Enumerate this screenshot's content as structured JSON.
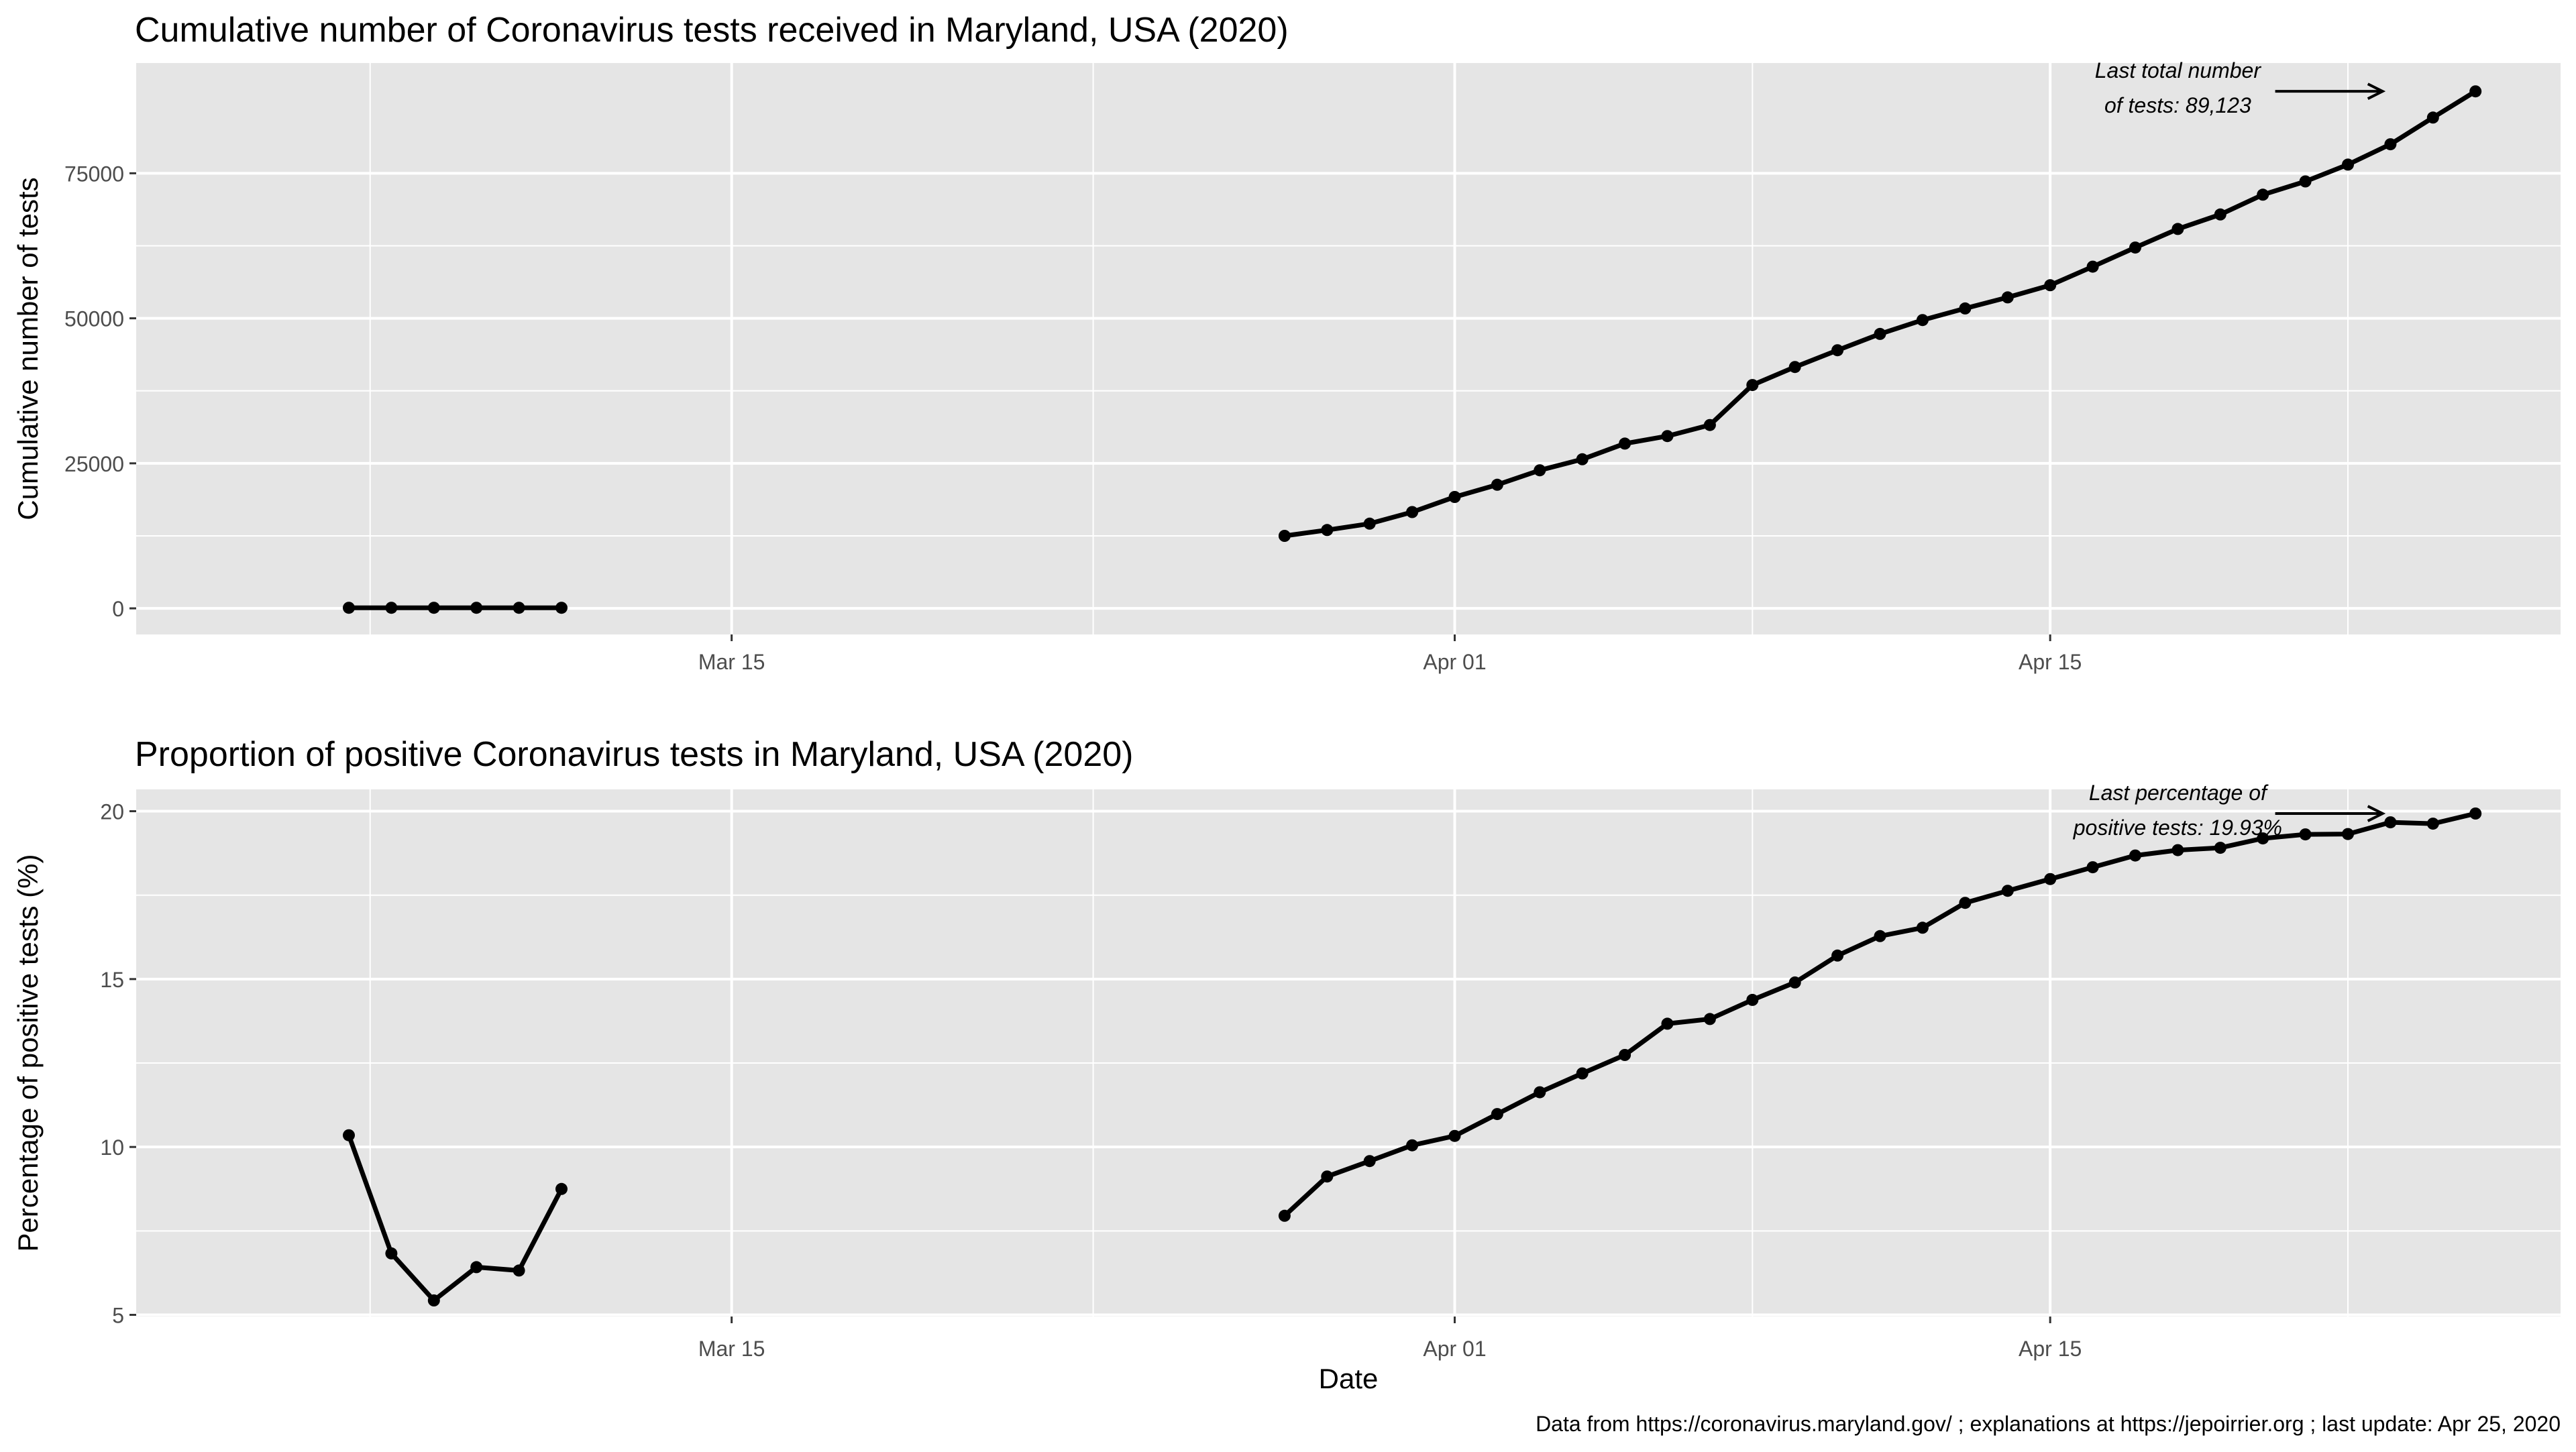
{
  "chart_data": [
    {
      "type": "line",
      "title": "Cumulative number of Coronavirus tests received in Maryland, USA (2020)",
      "xlabel": "",
      "ylabel": "Cumulative number of tests",
      "x_ticks": [
        "Mar 15",
        "Apr 01",
        "Apr 15"
      ],
      "y_ticks": [
        0,
        25000,
        50000,
        75000
      ],
      "xlim": [
        "2020-03-01",
        "2020-04-27"
      ],
      "ylim": [
        -4500,
        94000
      ],
      "grid": true,
      "annotation": {
        "lines": [
          "Last total number",
          "of tests: 89,123"
        ],
        "arrow_from_date": "2020-04-21",
        "arrow_to_date": "2020-04-22.5",
        "value": 89123
      },
      "series": [
        {
          "segments": [
            {
              "x": [
                "2020-03-06",
                "2020-03-07",
                "2020-03-08",
                "2020-03-09",
                "2020-03-10",
                "2020-03-11"
              ],
              "y": [
                100,
                100,
                100,
                100,
                100,
                100
              ]
            },
            {
              "x": [
                "2020-03-28",
                "2020-03-29",
                "2020-03-30",
                "2020-03-31",
                "2020-04-01",
                "2020-04-02",
                "2020-04-03",
                "2020-04-04",
                "2020-04-05",
                "2020-04-06",
                "2020-04-07",
                "2020-04-08",
                "2020-04-09",
                "2020-04-10",
                "2020-04-11",
                "2020-04-12",
                "2020-04-13",
                "2020-04-14",
                "2020-04-15",
                "2020-04-16",
                "2020-04-17",
                "2020-04-18",
                "2020-04-19",
                "2020-04-20",
                "2020-04-21",
                "2020-04-22",
                "2020-04-23",
                "2020-04-24",
                "2020-04-25"
              ],
              "y": [
                12500,
                13500,
                14600,
                16600,
                19200,
                21300,
                23800,
                25700,
                28400,
                29700,
                31600,
                38500,
                41600,
                44500,
                47300,
                49700,
                51700,
                53600,
                55700,
                58900,
                62200,
                65400,
                67900,
                71300,
                73600,
                76500,
                80000,
                84600,
                89123
              ]
            }
          ]
        }
      ]
    },
    {
      "type": "line",
      "title": "Proportion of positive Coronavirus tests in Maryland, USA (2020)",
      "xlabel": "Date",
      "ylabel": "Percentage of positive tests (%)",
      "x_ticks": [
        "Mar 15",
        "Apr 01",
        "Apr 15"
      ],
      "y_ticks": [
        5,
        10,
        15,
        20
      ],
      "xlim": [
        "2020-03-01",
        "2020-04-27"
      ],
      "ylim": [
        4.95,
        20.65
      ],
      "grid": true,
      "annotation": {
        "lines": [
          "Last percentage of",
          "positive tests: 19.93%"
        ],
        "arrow_from_date": "2020-04-21",
        "arrow_to_date": "2020-04-22.5",
        "value": 19.93
      },
      "series": [
        {
          "segments": [
            {
              "x": [
                "2020-03-06",
                "2020-03-07",
                "2020-03-08",
                "2020-03-09",
                "2020-03-10",
                "2020-03-11"
              ],
              "y": [
                10.35,
                6.83,
                5.43,
                6.42,
                6.32,
                8.75
              ]
            },
            {
              "x": [
                "2020-03-28",
                "2020-03-29",
                "2020-03-30",
                "2020-03-31",
                "2020-04-01",
                "2020-04-02",
                "2020-04-03",
                "2020-04-04",
                "2020-04-05",
                "2020-04-06",
                "2020-04-07",
                "2020-04-08",
                "2020-04-09",
                "2020-04-10",
                "2020-04-11",
                "2020-04-12",
                "2020-04-13",
                "2020-04-14",
                "2020-04-15",
                "2020-04-16",
                "2020-04-17",
                "2020-04-18",
                "2020-04-19",
                "2020-04-20",
                "2020-04-21",
                "2020-04-22",
                "2020-04-23",
                "2020-04-24",
                "2020-04-25"
              ],
              "y": [
                7.95,
                9.12,
                9.58,
                10.05,
                10.33,
                10.98,
                11.63,
                12.19,
                12.74,
                13.67,
                13.81,
                14.38,
                14.9,
                15.7,
                16.28,
                16.53,
                17.27,
                17.63,
                17.98,
                18.33,
                18.68,
                18.84,
                18.91,
                19.19,
                19.31,
                19.32,
                19.67,
                19.63,
                19.93
              ]
            }
          ]
        }
      ]
    }
  ],
  "footer": {
    "caption": "Data from https://coronavirus.maryland.gov/ ; explanations at https://jepoirrier.org ; last update: Apr 25, 2020"
  },
  "colors": {
    "panel": "#e5e5e5",
    "grid": "#ffffff",
    "line": "#000000",
    "text": "#000000",
    "tick_text": "#4d4d4d"
  }
}
